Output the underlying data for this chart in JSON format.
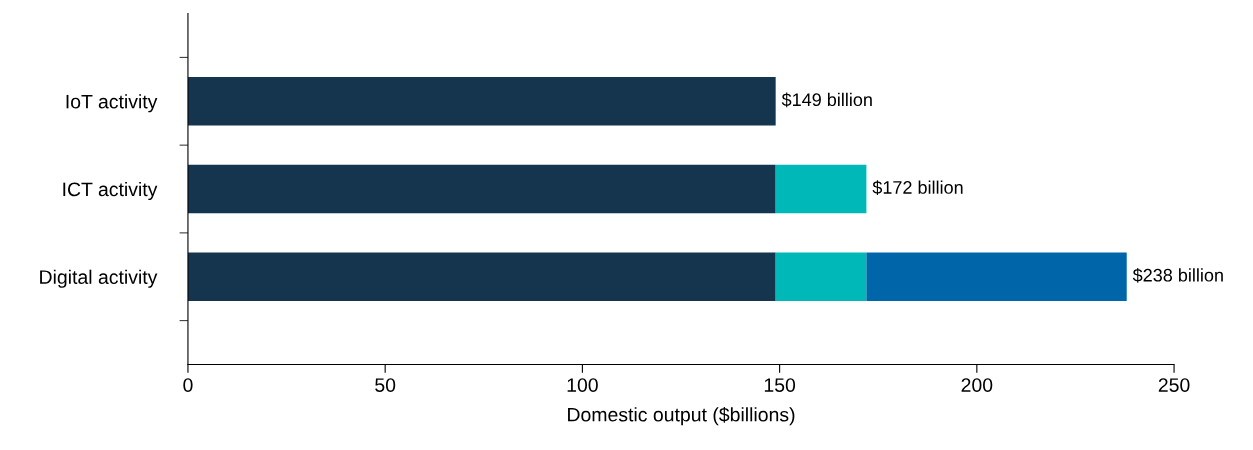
{
  "chart_data": {
    "type": "bar",
    "orientation": "horizontal",
    "stacked": true,
    "categories": [
      "IoT activity",
      "ICT activity",
      "Digital activity"
    ],
    "series": [
      {
        "color": "#15354f",
        "values": [
          149,
          149,
          149
        ]
      },
      {
        "color": "#00b8b8",
        "values": [
          null,
          23,
          23
        ]
      },
      {
        "color": "#0066aa",
        "values": [
          null,
          null,
          66
        ]
      }
    ],
    "totals": [
      "$149 billion",
      "$172 billion",
      "$238 billion"
    ],
    "xlabel": "Domestic output ($billions)",
    "xlim": [
      0,
      250
    ],
    "xticks": [
      0,
      50,
      100,
      150,
      200,
      250
    ],
    "grid": false,
    "legend": false
  }
}
